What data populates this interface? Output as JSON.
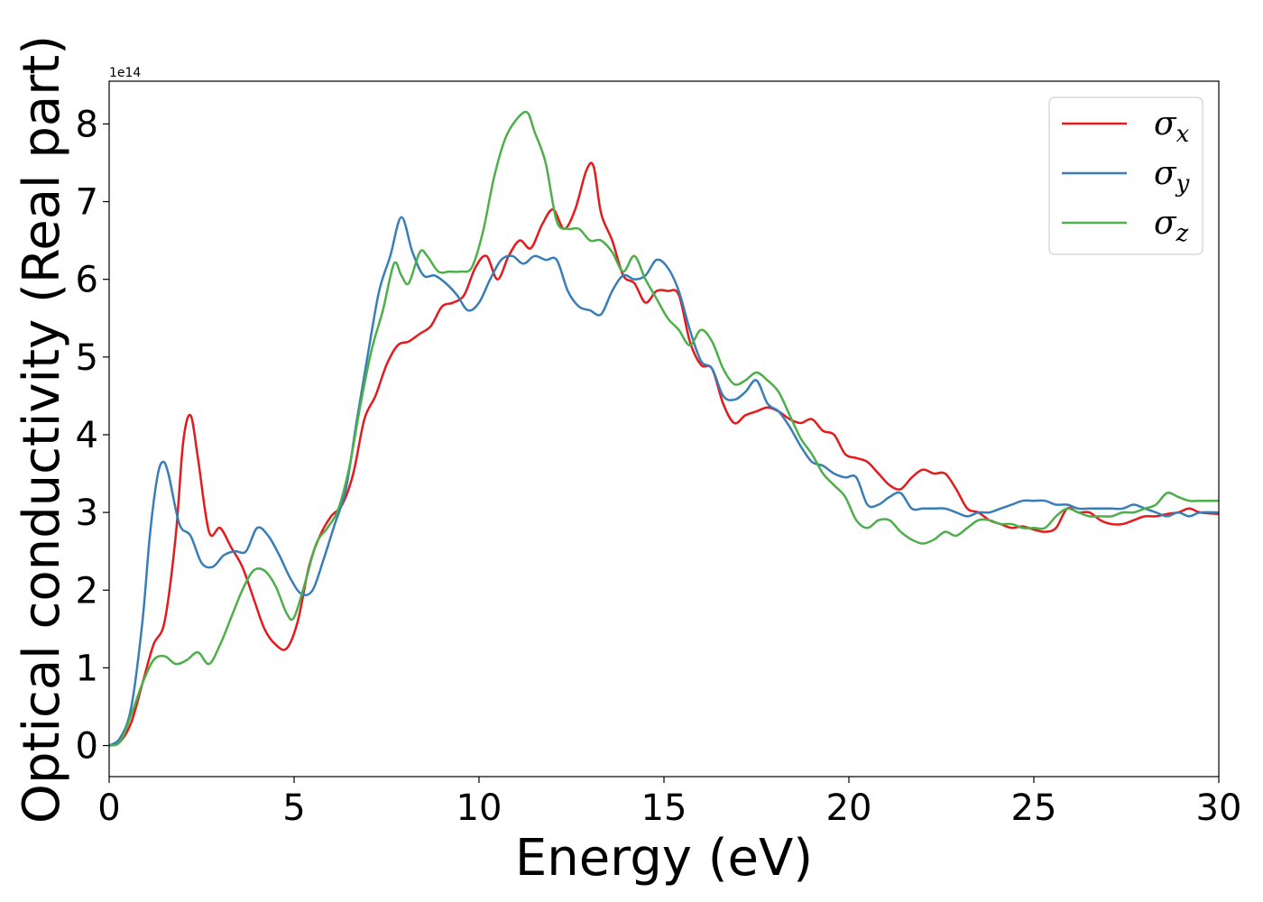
{
  "chart_data": {
    "type": "line",
    "xlabel": "Energy (eV)",
    "ylabel": "Optical conductivity (Real part)",
    "y_offset_text": "1e14",
    "y_scale": 100000000000000.0,
    "xlim": [
      0,
      30
    ],
    "ylim": [
      -0.4,
      8.55
    ],
    "xticks": [
      0,
      5,
      10,
      15,
      20,
      25,
      30
    ],
    "xtick_labels": [
      "0",
      "5",
      "10",
      "15",
      "20",
      "25",
      "30"
    ],
    "yticks": [
      0,
      1,
      2,
      3,
      4,
      5,
      6,
      7,
      8
    ],
    "ytick_labels": [
      "0",
      "1",
      "2",
      "3",
      "4",
      "5",
      "6",
      "7",
      "8"
    ],
    "grid": false,
    "legend_position": "top-right",
    "series": [
      {
        "name": "σ",
        "subscript": "x",
        "color": "#e41a1c",
        "x": [
          0,
          0.3,
          0.6,
          0.9,
          1.2,
          1.5,
          1.8,
          2.0,
          2.2,
          2.4,
          2.7,
          3.0,
          3.3,
          3.6,
          3.9,
          4.2,
          4.5,
          4.8,
          5.1,
          5.4,
          5.7,
          6.0,
          6.3,
          6.6,
          6.9,
          7.2,
          7.5,
          7.8,
          8.1,
          8.4,
          8.7,
          9.0,
          9.3,
          9.6,
          9.9,
          10.2,
          10.5,
          10.8,
          11.1,
          11.4,
          11.7,
          12.0,
          12.3,
          12.6,
          12.9,
          13.1,
          13.3,
          13.6,
          13.9,
          14.2,
          14.5,
          14.8,
          15.1,
          15.4,
          15.7,
          16.0,
          16.3,
          16.6,
          16.9,
          17.2,
          17.5,
          17.8,
          18.1,
          18.4,
          18.7,
          19.0,
          19.3,
          19.6,
          19.9,
          20.2,
          20.5,
          20.8,
          21.1,
          21.4,
          21.7,
          22.0,
          22.3,
          22.6,
          22.9,
          23.2,
          23.5,
          23.8,
          24.1,
          24.4,
          24.7,
          25.0,
          25.3,
          25.6,
          25.9,
          26.2,
          26.5,
          26.8,
          27.1,
          27.4,
          27.7,
          28.0,
          28.3,
          28.6,
          28.9,
          29.2,
          29.5,
          30.0
        ],
        "y": [
          0.0,
          0.05,
          0.3,
          0.8,
          1.3,
          1.6,
          2.7,
          3.9,
          4.25,
          3.7,
          2.75,
          2.8,
          2.55,
          2.3,
          1.9,
          1.5,
          1.3,
          1.25,
          1.6,
          2.3,
          2.7,
          2.95,
          3.1,
          3.5,
          4.2,
          4.5,
          4.9,
          5.15,
          5.2,
          5.3,
          5.4,
          5.65,
          5.7,
          5.8,
          6.15,
          6.3,
          6.0,
          6.3,
          6.5,
          6.4,
          6.7,
          6.9,
          6.65,
          6.9,
          7.4,
          7.45,
          6.85,
          6.5,
          6.05,
          5.95,
          5.7,
          5.85,
          5.85,
          5.8,
          5.2,
          4.9,
          4.85,
          4.4,
          4.15,
          4.25,
          4.3,
          4.35,
          4.3,
          4.2,
          4.15,
          4.2,
          4.05,
          4.0,
          3.75,
          3.7,
          3.65,
          3.5,
          3.35,
          3.3,
          3.45,
          3.55,
          3.5,
          3.5,
          3.3,
          3.05,
          3.0,
          2.9,
          2.85,
          2.8,
          2.82,
          2.78,
          2.75,
          2.8,
          3.05,
          3.0,
          3.0,
          2.9,
          2.85,
          2.85,
          2.9,
          2.95,
          2.95,
          2.98,
          3.0,
          3.05,
          3.0,
          2.98
        ]
      },
      {
        "name": "σ",
        "subscript": "y",
        "color": "#377eb8",
        "x": [
          0,
          0.3,
          0.6,
          0.9,
          1.1,
          1.3,
          1.45,
          1.6,
          1.9,
          2.2,
          2.5,
          2.8,
          3.1,
          3.4,
          3.7,
          4.0,
          4.3,
          4.6,
          4.9,
          5.2,
          5.5,
          5.8,
          6.1,
          6.4,
          6.7,
          7.0,
          7.3,
          7.6,
          7.9,
          8.2,
          8.5,
          8.8,
          9.1,
          9.4,
          9.7,
          10.0,
          10.3,
          10.6,
          10.9,
          11.2,
          11.5,
          11.8,
          12.1,
          12.4,
          12.7,
          13.0,
          13.3,
          13.6,
          13.9,
          14.2,
          14.5,
          14.8,
          15.1,
          15.4,
          15.7,
          16.0,
          16.3,
          16.6,
          16.9,
          17.2,
          17.5,
          17.8,
          18.1,
          18.4,
          18.7,
          19.0,
          19.3,
          19.6,
          19.9,
          20.2,
          20.5,
          20.8,
          21.1,
          21.4,
          21.7,
          22.0,
          22.3,
          22.6,
          22.9,
          23.2,
          23.5,
          23.8,
          24.1,
          24.4,
          24.7,
          25.0,
          25.3,
          25.6,
          25.9,
          26.2,
          26.5,
          26.8,
          27.1,
          27.4,
          27.7,
          28.0,
          28.3,
          28.6,
          28.9,
          29.2,
          29.5,
          30.0
        ],
        "y": [
          0.0,
          0.1,
          0.5,
          1.6,
          2.7,
          3.45,
          3.65,
          3.5,
          2.85,
          2.7,
          2.35,
          2.3,
          2.45,
          2.5,
          2.5,
          2.8,
          2.7,
          2.45,
          2.15,
          1.95,
          2.0,
          2.4,
          2.85,
          3.3,
          4.2,
          5.05,
          5.85,
          6.3,
          6.8,
          6.35,
          6.05,
          6.05,
          5.95,
          5.8,
          5.6,
          5.7,
          6.0,
          6.25,
          6.3,
          6.2,
          6.3,
          6.25,
          6.25,
          5.85,
          5.65,
          5.6,
          5.55,
          5.85,
          6.05,
          6.0,
          6.05,
          6.25,
          6.15,
          5.85,
          5.35,
          4.95,
          4.85,
          4.5,
          4.45,
          4.55,
          4.7,
          4.4,
          4.3,
          4.1,
          3.85,
          3.65,
          3.6,
          3.5,
          3.45,
          3.45,
          3.1,
          3.1,
          3.2,
          3.25,
          3.05,
          3.05,
          3.05,
          3.05,
          3.0,
          2.95,
          3.0,
          3.0,
          3.05,
          3.1,
          3.15,
          3.15,
          3.15,
          3.1,
          3.1,
          3.05,
          3.05,
          3.05,
          3.05,
          3.05,
          3.1,
          3.05,
          3.0,
          2.95,
          3.0,
          2.95,
          3.0,
          3.0
        ]
      },
      {
        "name": "σ",
        "subscript": "z",
        "color": "#4daf4a",
        "x": [
          0,
          0.3,
          0.6,
          0.9,
          1.2,
          1.5,
          1.8,
          2.1,
          2.4,
          2.7,
          3.0,
          3.3,
          3.6,
          3.9,
          4.2,
          4.5,
          4.8,
          5.0,
          5.3,
          5.6,
          5.9,
          6.2,
          6.5,
          6.8,
          7.1,
          7.4,
          7.7,
          7.9,
          8.1,
          8.4,
          8.6,
          8.9,
          9.2,
          9.5,
          9.8,
          10.1,
          10.4,
          10.7,
          11.0,
          11.3,
          11.5,
          11.8,
          12.1,
          12.4,
          12.7,
          13.0,
          13.3,
          13.6,
          13.9,
          14.2,
          14.5,
          14.8,
          15.1,
          15.4,
          15.7,
          16.0,
          16.3,
          16.6,
          16.9,
          17.2,
          17.5,
          17.8,
          18.1,
          18.4,
          18.7,
          19.0,
          19.3,
          19.6,
          19.9,
          20.2,
          20.5,
          20.8,
          21.1,
          21.4,
          21.7,
          22.0,
          22.3,
          22.6,
          22.9,
          23.2,
          23.5,
          23.8,
          24.1,
          24.4,
          24.7,
          25.0,
          25.3,
          25.6,
          25.9,
          26.2,
          26.5,
          26.8,
          27.1,
          27.4,
          27.7,
          28.0,
          28.3,
          28.6,
          28.9,
          29.2,
          29.5,
          30.0
        ],
        "y": [
          0.0,
          0.05,
          0.4,
          0.8,
          1.1,
          1.15,
          1.05,
          1.1,
          1.2,
          1.05,
          1.3,
          1.65,
          2.0,
          2.25,
          2.25,
          2.05,
          1.7,
          1.65,
          2.1,
          2.6,
          2.8,
          3.05,
          3.6,
          4.4,
          5.1,
          5.6,
          6.2,
          6.05,
          5.95,
          6.35,
          6.3,
          6.1,
          6.1,
          6.1,
          6.15,
          6.6,
          7.3,
          7.8,
          8.05,
          8.15,
          7.9,
          7.5,
          6.75,
          6.65,
          6.65,
          6.5,
          6.5,
          6.35,
          6.1,
          6.3,
          6.0,
          5.75,
          5.5,
          5.35,
          5.15,
          5.35,
          5.2,
          4.85,
          4.65,
          4.7,
          4.8,
          4.7,
          4.55,
          4.25,
          3.95,
          3.75,
          3.5,
          3.35,
          3.2,
          2.9,
          2.8,
          2.9,
          2.9,
          2.75,
          2.65,
          2.6,
          2.65,
          2.75,
          2.7,
          2.8,
          2.9,
          2.9,
          2.85,
          2.85,
          2.8,
          2.8,
          2.8,
          2.95,
          3.05,
          3.0,
          2.95,
          2.95,
          2.95,
          3.0,
          3.0,
          3.05,
          3.1,
          3.25,
          3.2,
          3.15,
          3.15,
          3.15
        ]
      }
    ]
  }
}
